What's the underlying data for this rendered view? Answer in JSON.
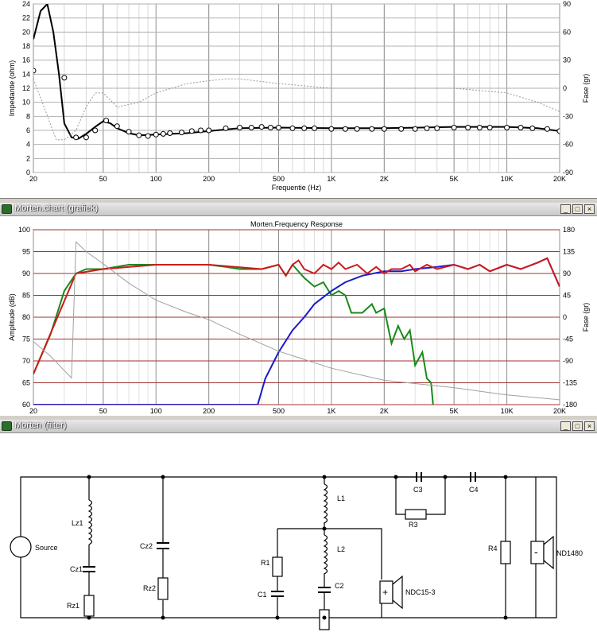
{
  "impedance_panel": {
    "chart_data": {
      "type": "line",
      "x_scale": "log",
      "xlim": [
        20,
        20000
      ],
      "ylim": [
        0,
        24
      ],
      "y2lim": [
        -90,
        90
      ],
      "grid": true,
      "xlabel": "Frequentie (Hz)",
      "ylabel": "Impedantie (ohm)",
      "y2label": "Fase (gr)",
      "x_ticks": [
        "20",
        "50",
        "100",
        "200",
        "500",
        "1K",
        "2K",
        "5K",
        "10K",
        "20K"
      ],
      "y_ticks": [
        "0",
        "2",
        "4",
        "6",
        "8",
        "10",
        "12",
        "14",
        "16",
        "18",
        "20",
        "22",
        "24"
      ],
      "y2_ticks": [
        "-90",
        "-60",
        "-30",
        "0",
        "30",
        "60",
        "90"
      ],
      "series": [
        {
          "role": "impedance",
          "color": "#000000",
          "style": "solid",
          "x": [
            20,
            22,
            24,
            26,
            28,
            30,
            33,
            36,
            40,
            45,
            50,
            55,
            60,
            70,
            80,
            100,
            150,
            200,
            300,
            500,
            1000,
            2000,
            5000,
            10000,
            15000,
            20000
          ],
          "y": [
            19,
            23,
            24,
            20,
            14,
            7,
            5,
            4.8,
            5.5,
            6.5,
            7.3,
            7.0,
            6.3,
            5.6,
            5.3,
            5.4,
            5.6,
            5.9,
            6.3,
            6.4,
            6.3,
            6.3,
            6.5,
            6.5,
            6.3,
            5.9
          ]
        },
        {
          "role": "phase",
          "color": "#9a9a9a",
          "style": "dotted",
          "axis": "right",
          "x": [
            20,
            23,
            27,
            30,
            35,
            40,
            45,
            50,
            60,
            80,
            100,
            150,
            200,
            250,
            300,
            500,
            1000,
            2000,
            5000,
            10000,
            15000,
            20000
          ],
          "y": [
            10,
            -20,
            -55,
            -55,
            -45,
            -20,
            -5,
            -5,
            -20,
            -15,
            -5,
            5,
            8,
            10,
            10,
            5,
            0,
            0,
            0,
            -5,
            -15,
            -25
          ]
        },
        {
          "role": "measured",
          "color": "#000000",
          "style": "circle",
          "x": [
            20,
            30,
            35,
            40,
            45,
            52,
            60,
            70,
            80,
            90,
            100,
            110,
            120,
            140,
            160,
            180,
            200,
            250,
            300,
            350,
            400,
            450,
            500,
            600,
            700,
            800,
            1000,
            1200,
            1400,
            1700,
            2000,
            2500,
            3000,
            3500,
            4000,
            5000,
            6000,
            7000,
            8000,
            10000,
            12000,
            14000,
            17000,
            20000
          ],
          "y": [
            14.5,
            13.5,
            5.0,
            5.0,
            6.0,
            7.4,
            6.6,
            5.8,
            5.3,
            5.2,
            5.4,
            5.5,
            5.6,
            5.7,
            5.9,
            6.0,
            6.0,
            6.3,
            6.4,
            6.4,
            6.5,
            6.4,
            6.4,
            6.3,
            6.3,
            6.3,
            6.2,
            6.2,
            6.2,
            6.2,
            6.2,
            6.2,
            6.2,
            6.3,
            6.3,
            6.4,
            6.4,
            6.4,
            6.4,
            6.4,
            6.4,
            6.3,
            6.2,
            5.9
          ]
        }
      ]
    }
  },
  "frequency_panel": {
    "window_title": "Morten.chart (grafiek)",
    "buttons": {
      "minimize": "_",
      "maximize": "□",
      "close": "×"
    },
    "chart_data": {
      "type": "line",
      "title": "Morten.Frequency Response",
      "x_scale": "log",
      "xlim": [
        20,
        20000
      ],
      "ylim": [
        60,
        100
      ],
      "y2lim": [
        -180,
        180
      ],
      "grid": true,
      "xlabel": "Frequentie (Hz)",
      "ylabel": "Amplitude (dB)",
      "y2label": "Fase (gr)",
      "x_ticks": [
        "20",
        "50",
        "100",
        "200",
        "500",
        "1K",
        "2K",
        "5K",
        "10K",
        "20K"
      ],
      "y_ticks": [
        "60",
        "65",
        "70",
        "75",
        "80",
        "85",
        "90",
        "95",
        "100"
      ],
      "y2_ticks": [
        "-180",
        "-135",
        "-90",
        "-45",
        "0",
        "45",
        "90",
        "135",
        "180"
      ],
      "series": [
        {
          "role": "woofer",
          "color": "#1a8a1a",
          "x": [
            20,
            25,
            30,
            35,
            40,
            50,
            70,
            100,
            150,
            200,
            250,
            300,
            400,
            500,
            550,
            600,
            700,
            800,
            900,
            1000,
            1100,
            1200,
            1300,
            1500,
            1700,
            1800,
            2000,
            2200,
            2400,
            2600,
            2800,
            3000,
            3300,
            3500,
            3700,
            3800
          ],
          "y": [
            67,
            76,
            86,
            90,
            91,
            91,
            92,
            92,
            92,
            92,
            91.5,
            91,
            91,
            92,
            89.5,
            92,
            89,
            87,
            88,
            85,
            86,
            85,
            81,
            81,
            83,
            81,
            82,
            74,
            78,
            75,
            77,
            69,
            72,
            66,
            65,
            60
          ]
        },
        {
          "role": "tweeter",
          "color": "#1a1acc",
          "x": [
            20,
            300,
            380,
            420,
            500,
            600,
            700,
            800,
            1000,
            1200,
            1500,
            2000,
            2500,
            3000,
            4000,
            5000,
            6000,
            7000,
            8000,
            10000,
            12000,
            15000,
            17000,
            20000
          ],
          "y": [
            60,
            60,
            60,
            66,
            72,
            77,
            80,
            83,
            86,
            88,
            89.5,
            90.5,
            90.5,
            91,
            91.5,
            92,
            91,
            92,
            90.5,
            92,
            91,
            92.5,
            93.5,
            87
          ]
        },
        {
          "role": "sum",
          "color": "#cc1a1a",
          "x": [
            20,
            35,
            50,
            100,
            200,
            400,
            500,
            550,
            600,
            650,
            700,
            800,
            900,
            1000,
            1100,
            1200,
            1400,
            1600,
            1800,
            2000,
            2200,
            2500,
            2800,
            3000,
            3500,
            4000,
            5000,
            6000,
            7000,
            8000,
            10000,
            12000,
            15000,
            17000,
            20000
          ],
          "y": [
            67,
            90,
            91,
            92,
            92,
            91,
            92,
            89.5,
            92,
            93,
            91,
            90,
            92,
            91,
            92.5,
            91,
            92,
            90,
            91.5,
            90,
            91,
            91,
            92,
            90.5,
            92,
            91,
            92,
            91,
            92,
            90.5,
            92,
            91,
            92.5,
            93.5,
            87
          ]
        },
        {
          "role": "phase",
          "color": "#a0a0a0",
          "axis": "right",
          "x": [
            20,
            25,
            30,
            33,
            35,
            40,
            50,
            70,
            100,
            150,
            200,
            300,
            500,
            1000,
            2000,
            5000,
            10000,
            20000
          ],
          "y": [
            -50,
            -80,
            -110,
            -125,
            155,
            135,
            110,
            70,
            35,
            10,
            -5,
            -35,
            -70,
            -105,
            -130,
            -145,
            -160,
            -170
          ]
        }
      ]
    }
  },
  "filter_panel": {
    "window_title": "Morten (filter)",
    "buttons": {
      "minimize": "_",
      "maximize": "□",
      "close": "×"
    },
    "labels": {
      "source": "Source",
      "lz1": "Lz1",
      "cz1": "Cz1",
      "rz1": "Rz1",
      "cz2": "Cz2",
      "rz2": "Rz2",
      "l1": "L1",
      "l2": "L2",
      "r1": "R1",
      "c1": "C1",
      "c2": "C2",
      "c3": "C3",
      "c4": "C4",
      "r3": "R3",
      "r4": "R4",
      "tweeter": "ND1480",
      "woofer": "NDC15-3",
      "plus": "+",
      "minus": "-"
    }
  }
}
